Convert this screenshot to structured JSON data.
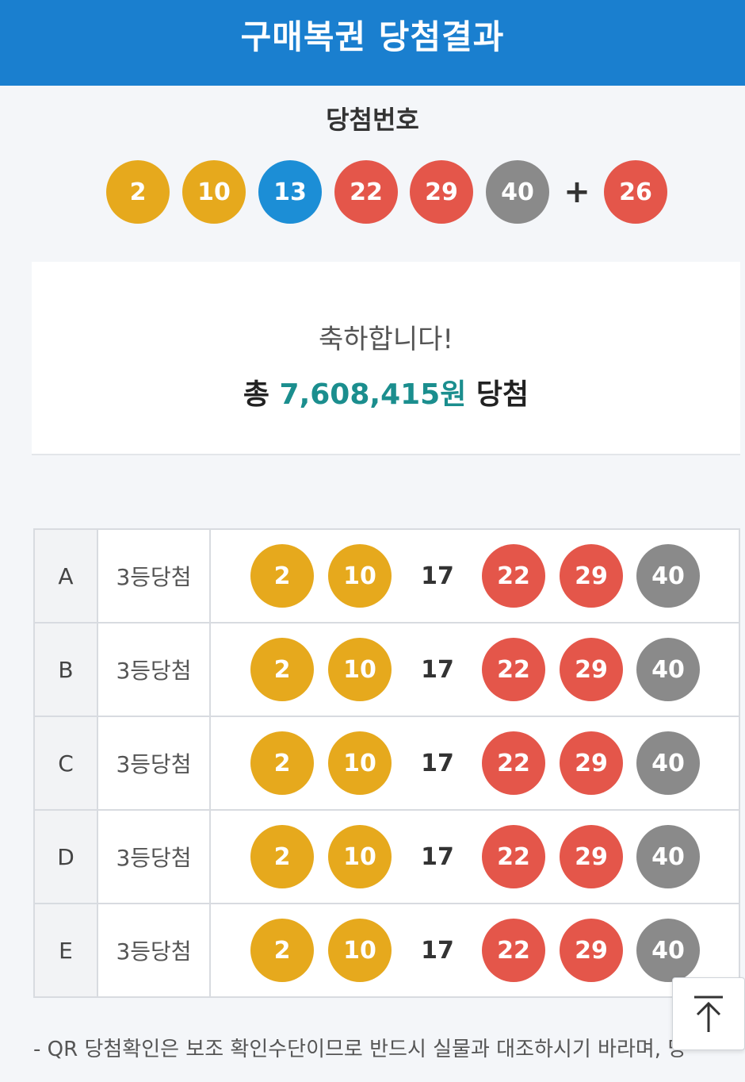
{
  "header": {
    "title": "구매복권 당첨결과"
  },
  "winning": {
    "title": "당첨번호",
    "numbers": [
      {
        "value": "2",
        "color": "#e6a91d"
      },
      {
        "value": "10",
        "color": "#e6a91d"
      },
      {
        "value": "13",
        "color": "#1c8ed6"
      },
      {
        "value": "22",
        "color": "#e4564a"
      },
      {
        "value": "29",
        "color": "#e4564a"
      },
      {
        "value": "40",
        "color": "#8a8a8a"
      }
    ],
    "plus": "+",
    "bonus": {
      "value": "26",
      "color": "#e4564a"
    }
  },
  "summary": {
    "congrats": "축하합니다!",
    "prefix": "총 ",
    "amount": "7,608,415원",
    "suffix": " 당첨"
  },
  "rows": [
    {
      "id": "A",
      "rank": "3등당첨",
      "numbers": [
        {
          "value": "2",
          "color": "#e6a91d",
          "matched": true
        },
        {
          "value": "10",
          "color": "#e6a91d",
          "matched": true
        },
        {
          "value": "17",
          "color": "",
          "matched": false
        },
        {
          "value": "22",
          "color": "#e4564a",
          "matched": true
        },
        {
          "value": "29",
          "color": "#e4564a",
          "matched": true
        },
        {
          "value": "40",
          "color": "#8a8a8a",
          "matched": true
        }
      ]
    },
    {
      "id": "B",
      "rank": "3등당첨",
      "numbers": [
        {
          "value": "2",
          "color": "#e6a91d",
          "matched": true
        },
        {
          "value": "10",
          "color": "#e6a91d",
          "matched": true
        },
        {
          "value": "17",
          "color": "",
          "matched": false
        },
        {
          "value": "22",
          "color": "#e4564a",
          "matched": true
        },
        {
          "value": "29",
          "color": "#e4564a",
          "matched": true
        },
        {
          "value": "40",
          "color": "#8a8a8a",
          "matched": true
        }
      ]
    },
    {
      "id": "C",
      "rank": "3등당첨",
      "numbers": [
        {
          "value": "2",
          "color": "#e6a91d",
          "matched": true
        },
        {
          "value": "10",
          "color": "#e6a91d",
          "matched": true
        },
        {
          "value": "17",
          "color": "",
          "matched": false
        },
        {
          "value": "22",
          "color": "#e4564a",
          "matched": true
        },
        {
          "value": "29",
          "color": "#e4564a",
          "matched": true
        },
        {
          "value": "40",
          "color": "#8a8a8a",
          "matched": true
        }
      ]
    },
    {
      "id": "D",
      "rank": "3등당첨",
      "numbers": [
        {
          "value": "2",
          "color": "#e6a91d",
          "matched": true
        },
        {
          "value": "10",
          "color": "#e6a91d",
          "matched": true
        },
        {
          "value": "17",
          "color": "",
          "matched": false
        },
        {
          "value": "22",
          "color": "#e4564a",
          "matched": true
        },
        {
          "value": "29",
          "color": "#e4564a",
          "matched": true
        },
        {
          "value": "40",
          "color": "#8a8a8a",
          "matched": true
        }
      ]
    },
    {
      "id": "E",
      "rank": "3등당첨",
      "numbers": [
        {
          "value": "2",
          "color": "#e6a91d",
          "matched": true
        },
        {
          "value": "10",
          "color": "#e6a91d",
          "matched": true
        },
        {
          "value": "17",
          "color": "",
          "matched": false
        },
        {
          "value": "22",
          "color": "#e4564a",
          "matched": true
        },
        {
          "value": "29",
          "color": "#e4564a",
          "matched": true
        },
        {
          "value": "40",
          "color": "#8a8a8a",
          "matched": true
        }
      ]
    }
  ],
  "footnote": "- QR 당첨확인은 보조 확인수단이므로 반드시 실물과 대조하시기 바라며, 당",
  "scroll_top": {
    "icon": "arrow-up-to-top-icon"
  }
}
